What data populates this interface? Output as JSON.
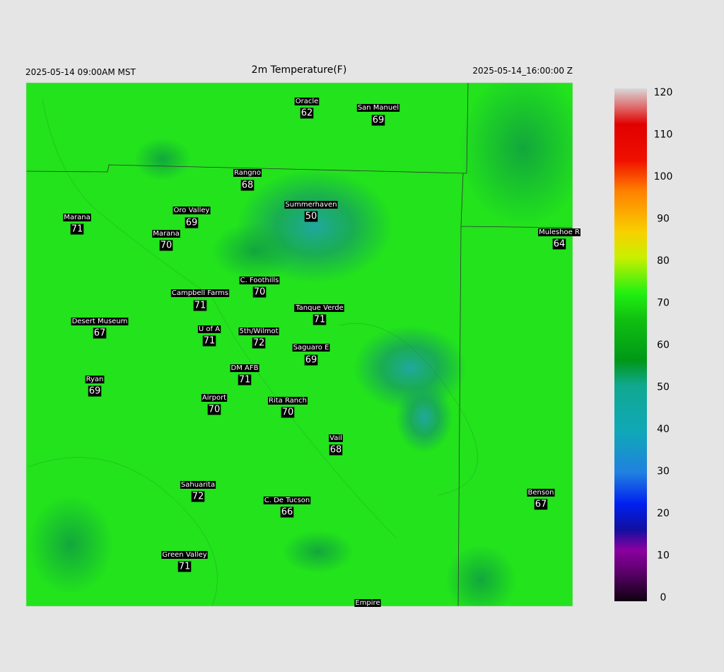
{
  "header": {
    "left": "2025-05-14 09:00AM MST",
    "title": "2m Temperature(F)",
    "right": "2025-05-14_16:00:00 Z"
  },
  "stations": [
    {
      "name": "Oracle",
      "value": 62
    },
    {
      "name": "San Manuel",
      "value": 69
    },
    {
      "name": "Rangno",
      "value": 68
    },
    {
      "name": "Summerhaven",
      "value": 50
    },
    {
      "name": "Marana",
      "value": 71
    },
    {
      "name": "Oro Valley",
      "value": 69
    },
    {
      "name": "Marana",
      "value": 70
    },
    {
      "name": "Muleshoe R",
      "value": 64
    },
    {
      "name": "C. Foothills",
      "value": 70
    },
    {
      "name": "Campbell Farms",
      "value": 71
    },
    {
      "name": "Tanque Verde",
      "value": 71
    },
    {
      "name": "Desert Museum",
      "value": 67
    },
    {
      "name": "U of A",
      "value": 71
    },
    {
      "name": "5th/Wilmot",
      "value": 72
    },
    {
      "name": "Saguaro E",
      "value": 69
    },
    {
      "name": "DM AFB",
      "value": 71
    },
    {
      "name": "Ryan",
      "value": 69
    },
    {
      "name": "Airport",
      "value": 70
    },
    {
      "name": "Rita Ranch",
      "value": 70
    },
    {
      "name": "Vail",
      "value": 68
    },
    {
      "name": "Sahuarita",
      "value": 72
    },
    {
      "name": "C. De Tucson",
      "value": 66
    },
    {
      "name": "Benson",
      "value": 67
    },
    {
      "name": "Green Valley",
      "value": 71
    },
    {
      "name": "Empire"
    }
  ],
  "colorbar": {
    "ticks": [
      0,
      10,
      20,
      30,
      40,
      50,
      60,
      70,
      80,
      90,
      100,
      110,
      120
    ]
  }
}
